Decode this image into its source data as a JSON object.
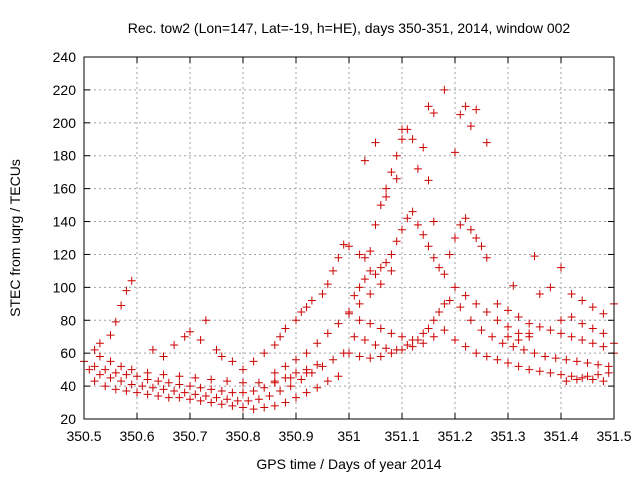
{
  "chart_data": {
    "type": "scatter",
    "title": "Rec. tow2 (Lon=147, Lat=-19, h=HE), days 350-351, 2014, window 002",
    "xlabel": "GPS time / Days of year 2014",
    "ylabel": "STEC from uqrg / TECUs",
    "xlim": [
      350.5,
      351.5
    ],
    "ylim": [
      20,
      240
    ],
    "xticks": [
      "350.5",
      "350.6",
      "350.7",
      "350.8",
      "350.9",
      "351",
      "351.1",
      "351.2",
      "351.3",
      "351.4",
      "351.5"
    ],
    "yticks": [
      "20",
      "40",
      "60",
      "80",
      "100",
      "120",
      "140",
      "160",
      "180",
      "200",
      "220",
      "240"
    ],
    "grid": true,
    "marker": "+",
    "color": "#cc0000",
    "series": [
      {
        "points": [
          [
            350.52,
            43
          ],
          [
            350.54,
            40
          ],
          [
            350.56,
            38
          ],
          [
            350.58,
            37
          ],
          [
            350.6,
            36
          ],
          [
            350.62,
            35
          ],
          [
            350.64,
            34
          ],
          [
            350.66,
            33
          ],
          [
            350.68,
            33
          ],
          [
            350.7,
            32
          ],
          [
            350.72,
            31
          ],
          [
            350.74,
            30
          ],
          [
            350.76,
            29
          ],
          [
            350.78,
            28
          ],
          [
            350.8,
            27
          ],
          [
            350.82,
            26
          ],
          [
            350.84,
            27
          ],
          [
            350.86,
            28
          ],
          [
            350.88,
            30
          ],
          [
            350.9,
            33
          ],
          [
            350.92,
            36
          ],
          [
            350.94,
            39
          ],
          [
            350.96,
            43
          ],
          [
            350.98,
            46
          ],
          [
            350.51,
            50
          ],
          [
            350.53,
            47
          ],
          [
            350.55,
            45
          ],
          [
            350.57,
            43
          ],
          [
            350.59,
            41
          ],
          [
            350.61,
            40
          ],
          [
            350.63,
            39
          ],
          [
            350.65,
            38
          ],
          [
            350.67,
            37
          ],
          [
            350.69,
            36
          ],
          [
            350.71,
            35
          ],
          [
            350.73,
            34
          ],
          [
            350.75,
            33
          ],
          [
            350.77,
            32
          ],
          [
            350.79,
            31
          ],
          [
            350.81,
            31
          ],
          [
            350.83,
            32
          ],
          [
            350.85,
            34
          ],
          [
            350.87,
            37
          ],
          [
            350.89,
            40
          ],
          [
            350.91,
            44
          ],
          [
            350.93,
            48
          ],
          [
            350.95,
            52
          ],
          [
            350.97,
            56
          ],
          [
            350.99,
            60
          ],
          [
            350.5,
            55
          ],
          [
            350.52,
            52
          ],
          [
            350.54,
            50
          ],
          [
            350.56,
            48
          ],
          [
            350.58,
            47
          ],
          [
            350.6,
            46
          ],
          [
            350.62,
            44
          ],
          [
            350.64,
            43
          ],
          [
            350.66,
            42
          ],
          [
            350.68,
            41
          ],
          [
            350.7,
            40
          ],
          [
            350.72,
            39
          ],
          [
            350.74,
            38
          ],
          [
            350.76,
            37
          ],
          [
            350.78,
            36
          ],
          [
            350.8,
            36
          ],
          [
            350.82,
            37
          ],
          [
            350.84,
            39
          ],
          [
            350.86,
            42
          ],
          [
            350.88,
            45
          ],
          [
            350.9,
            48
          ],
          [
            350.92,
            50
          ],
          [
            350.94,
            53
          ],
          [
            350.52,
            62
          ],
          [
            350.53,
            58
          ],
          [
            350.55,
            55
          ],
          [
            350.57,
            52
          ],
          [
            350.59,
            50
          ],
          [
            350.62,
            48
          ],
          [
            350.65,
            47
          ],
          [
            350.68,
            46
          ],
          [
            350.71,
            45
          ],
          [
            350.74,
            44
          ],
          [
            350.77,
            43
          ],
          [
            350.8,
            42
          ],
          [
            350.83,
            42
          ],
          [
            350.86,
            43
          ],
          [
            350.89,
            45
          ],
          [
            350.92,
            48
          ],
          [
            350.53,
            66
          ],
          [
            350.55,
            71
          ],
          [
            350.56,
            79
          ],
          [
            350.57,
            89
          ],
          [
            350.58,
            98
          ],
          [
            350.59,
            104
          ],
          [
            350.63,
            62
          ],
          [
            350.65,
            58
          ],
          [
            350.67,
            65
          ],
          [
            350.69,
            70
          ],
          [
            350.7,
            73
          ],
          [
            350.72,
            68
          ],
          [
            350.73,
            80
          ],
          [
            350.75,
            62
          ],
          [
            350.76,
            58
          ],
          [
            350.78,
            55
          ],
          [
            350.8,
            50
          ],
          [
            350.82,
            55
          ],
          [
            350.84,
            60
          ],
          [
            350.86,
            65
          ],
          [
            350.87,
            70
          ],
          [
            350.88,
            75
          ],
          [
            350.9,
            80
          ],
          [
            350.91,
            85
          ],
          [
            350.92,
            88
          ],
          [
            350.93,
            92
          ],
          [
            350.95,
            96
          ],
          [
            350.96,
            102
          ],
          [
            350.97,
            110
          ],
          [
            350.98,
            118
          ],
          [
            350.99,
            126
          ],
          [
            350.86,
            48
          ],
          [
            350.88,
            52
          ],
          [
            350.9,
            56
          ],
          [
            350.92,
            60
          ],
          [
            350.94,
            66
          ],
          [
            350.96,
            72
          ],
          [
            350.98,
            78
          ],
          [
            351.0,
            84
          ],
          [
            351.02,
            90
          ],
          [
            351.04,
            96
          ],
          [
            351.06,
            102
          ],
          [
            351.08,
            110
          ],
          [
            351.0,
            125
          ],
          [
            351.02,
            120
          ],
          [
            351.03,
            118
          ],
          [
            351.04,
            122
          ],
          [
            351.05,
            138
          ],
          [
            351.06,
            150
          ],
          [
            351.07,
            160
          ],
          [
            351.08,
            170
          ],
          [
            351.09,
            180
          ],
          [
            351.1,
            190
          ],
          [
            351.11,
            196
          ],
          [
            351.12,
            190
          ],
          [
            351.14,
            185
          ],
          [
            351.15,
            165
          ],
          [
            351.16,
            140
          ],
          [
            351.03,
            177
          ],
          [
            351.05,
            188
          ],
          [
            351.07,
            155
          ],
          [
            351.09,
            166
          ],
          [
            351.1,
            196
          ],
          [
            351.13,
            172
          ],
          [
            351.15,
            210
          ],
          [
            351.16,
            206
          ],
          [
            351.18,
            220
          ],
          [
            351.2,
            182
          ],
          [
            351.21,
            205
          ],
          [
            351.22,
            210
          ],
          [
            351.23,
            198
          ],
          [
            351.24,
            208
          ],
          [
            351.26,
            188
          ],
          [
            351.01,
            95
          ],
          [
            351.02,
            100
          ],
          [
            351.03,
            105
          ],
          [
            351.04,
            110
          ],
          [
            351.05,
            108
          ],
          [
            351.06,
            112
          ],
          [
            351.07,
            115
          ],
          [
            351.08,
            120
          ],
          [
            351.09,
            128
          ],
          [
            351.1,
            135
          ],
          [
            351.11,
            142
          ],
          [
            351.12,
            146
          ],
          [
            351.13,
            138
          ],
          [
            351.14,
            132
          ],
          [
            351.15,
            125
          ],
          [
            351.16,
            118
          ],
          [
            351.17,
            112
          ],
          [
            351.18,
            108
          ],
          [
            351.19,
            120
          ],
          [
            351.2,
            130
          ],
          [
            351.21,
            138
          ],
          [
            351.22,
            142
          ],
          [
            351.23,
            135
          ],
          [
            351.24,
            130
          ],
          [
            351.25,
            125
          ],
          [
            351.26,
            118
          ],
          [
            351.0,
            85
          ],
          [
            351.02,
            80
          ],
          [
            351.04,
            78
          ],
          [
            351.06,
            75
          ],
          [
            351.08,
            72
          ],
          [
            351.1,
            70
          ],
          [
            351.12,
            68
          ],
          [
            351.14,
            72
          ],
          [
            351.16,
            80
          ],
          [
            351.18,
            90
          ],
          [
            351.2,
            100
          ],
          [
            351.22,
            95
          ],
          [
            351.24,
            90
          ],
          [
            351.26,
            85
          ],
          [
            351.28,
            80
          ],
          [
            351.3,
            76
          ],
          [
            351.32,
            72
          ],
          [
            351.34,
            70
          ],
          [
            351.0,
            60
          ],
          [
            351.02,
            58
          ],
          [
            351.04,
            57
          ],
          [
            351.06,
            58
          ],
          [
            351.08,
            60
          ],
          [
            351.1,
            62
          ],
          [
            351.12,
            64
          ],
          [
            351.14,
            66
          ],
          [
            351.16,
            70
          ],
          [
            351.18,
            74
          ],
          [
            351.2,
            68
          ],
          [
            351.22,
            64
          ],
          [
            351.24,
            60
          ],
          [
            351.26,
            58
          ],
          [
            351.28,
            56
          ],
          [
            351.3,
            54
          ],
          [
            351.32,
            52
          ],
          [
            351.34,
            50
          ],
          [
            351.36,
            49
          ],
          [
            351.38,
            48
          ],
          [
            351.4,
            47
          ],
          [
            351.42,
            46
          ],
          [
            351.44,
            45
          ],
          [
            351.46,
            44
          ],
          [
            351.48,
            43
          ],
          [
            351.01,
            70
          ],
          [
            351.03,
            68
          ],
          [
            351.05,
            65
          ],
          [
            351.07,
            63
          ],
          [
            351.09,
            62
          ],
          [
            351.11,
            65
          ],
          [
            351.13,
            68
          ],
          [
            351.15,
            75
          ],
          [
            351.17,
            85
          ],
          [
            351.19,
            92
          ],
          [
            351.21,
            88
          ],
          [
            351.23,
            80
          ],
          [
            351.25,
            74
          ],
          [
            351.27,
            70
          ],
          [
            351.29,
            66
          ],
          [
            351.31,
            64
          ],
          [
            351.33,
            62
          ],
          [
            351.35,
            60
          ],
          [
            351.37,
            58
          ],
          [
            351.39,
            57
          ],
          [
            351.41,
            56
          ],
          [
            351.43,
            55
          ],
          [
            351.45,
            54
          ],
          [
            351.47,
            53
          ],
          [
            351.49,
            52
          ],
          [
            351.28,
            90
          ],
          [
            351.3,
            86
          ],
          [
            351.32,
            82
          ],
          [
            351.34,
            78
          ],
          [
            351.36,
            96
          ],
          [
            351.38,
            100
          ],
          [
            351.4,
            112
          ],
          [
            351.42,
            96
          ],
          [
            351.44,
            92
          ],
          [
            351.46,
            88
          ],
          [
            351.48,
            84
          ],
          [
            351.5,
            90
          ],
          [
            351.3,
            70
          ],
          [
            351.32,
            68
          ],
          [
            351.34,
            72
          ],
          [
            351.36,
            76
          ],
          [
            351.38,
            74
          ],
          [
            351.4,
            72
          ],
          [
            351.42,
            70
          ],
          [
            351.44,
            68
          ],
          [
            351.46,
            66
          ],
          [
            351.48,
            64
          ],
          [
            351.5,
            66
          ],
          [
            351.35,
            119
          ],
          [
            351.31,
            101
          ],
          [
            351.4,
            80
          ],
          [
            351.42,
            82
          ],
          [
            351.44,
            78
          ],
          [
            351.46,
            75
          ],
          [
            351.48,
            72
          ],
          [
            351.5,
            60
          ],
          [
            351.49,
            48
          ],
          [
            351.47,
            47
          ],
          [
            351.45,
            46
          ],
          [
            351.43,
            44
          ],
          [
            351.41,
            43
          ]
        ]
      }
    ]
  }
}
